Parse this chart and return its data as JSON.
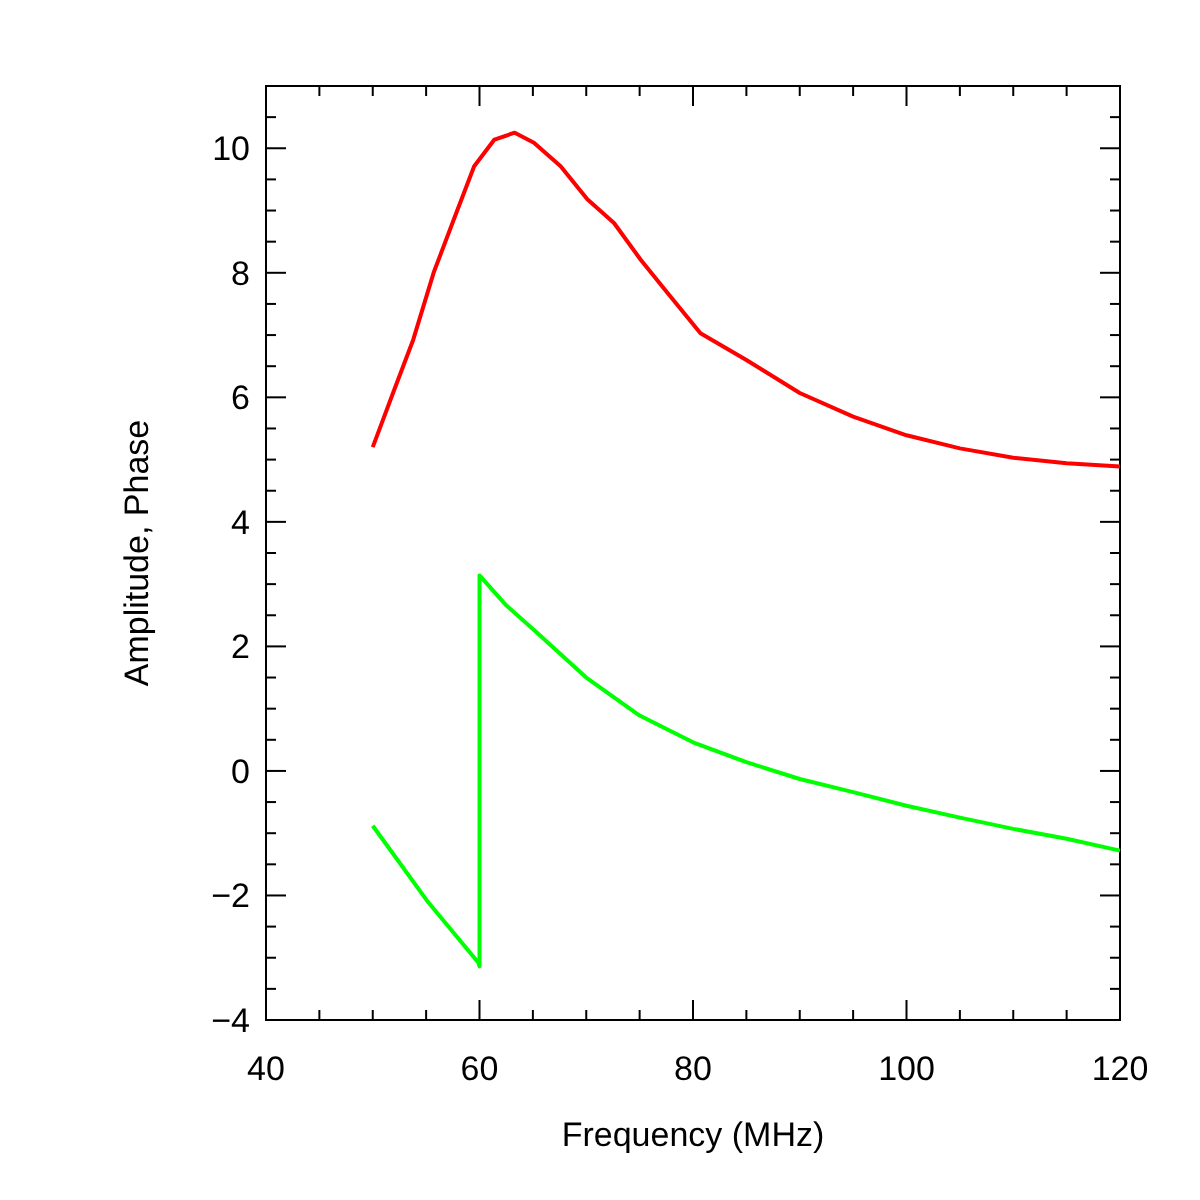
{
  "chart_data": {
    "type": "line",
    "xlabel": "Frequency (MHz)",
    "ylabel": "Amplitude, Phase",
    "xlim": [
      40,
      120
    ],
    "ylim": [
      -4,
      11
    ],
    "xticks": [
      40,
      60,
      80,
      100,
      120
    ],
    "yticks": [
      -4,
      -2,
      0,
      2,
      4,
      6,
      8,
      10
    ],
    "grid": false,
    "line_style": "solid",
    "series": [
      {
        "color": "#ff0000",
        "x": [
          50,
          51.9,
          53.8,
          55.7,
          57.6,
          59.5,
          61.4,
          63.3,
          65.1,
          67.6,
          70.1,
          72.6,
          75.1,
          77.6,
          80.7,
          85,
          90,
          95,
          100,
          105,
          110,
          115,
          120
        ],
        "values": [
          5.2,
          6.07,
          6.93,
          8.0,
          8.86,
          9.71,
          10.14,
          10.25,
          10.09,
          9.71,
          9.18,
          8.8,
          8.21,
          7.68,
          7.03,
          6.6,
          6.07,
          5.69,
          5.39,
          5.18,
          5.03,
          4.94,
          4.89
        ]
      },
      {
        "color": "#00ff00",
        "x": [
          50,
          55.2,
          59.9,
          60,
          60,
          62.5,
          65,
          70,
          75,
          80,
          85,
          90,
          95,
          100,
          105,
          110,
          115,
          120
        ],
        "values": [
          -0.88,
          -2.11,
          -3.08,
          -3.14,
          3.14,
          2.66,
          2.28,
          1.5,
          0.89,
          0.46,
          0.14,
          -0.13,
          -0.34,
          -0.56,
          -0.75,
          -0.93,
          -1.09,
          -1.28
        ]
      }
    ]
  }
}
